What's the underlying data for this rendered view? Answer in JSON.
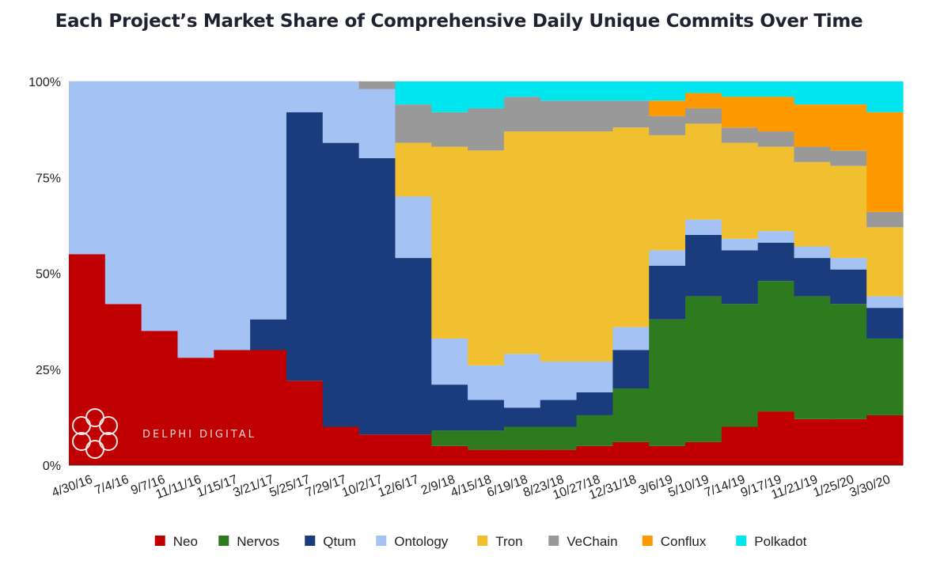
{
  "title": "Each Project’s Market Share of Comprehensive Daily Unique Commits Over Time",
  "watermark": "DELPHI DIGITAL",
  "chart_data": {
    "type": "area",
    "stacked": true,
    "normalized": true,
    "title": "Each Project’s Market Share of Comprehensive Daily Unique Commits Over Time",
    "xlabel": "",
    "ylabel": "",
    "ylim": [
      0,
      100
    ],
    "y_ticks": [
      "0%",
      "25%",
      "50%",
      "75%",
      "100%"
    ],
    "x_ticks": [
      "4/30/16",
      "7/4/16",
      "9/7/16",
      "11/11/16",
      "1/15/17",
      "3/21/17",
      "5/25/17",
      "7/29/17",
      "10/2/17",
      "12/6/17",
      "2/9/18",
      "4/15/18",
      "6/19/18",
      "8/23/18",
      "10/27/18",
      "12/31/18",
      "3/6/19",
      "5/10/19",
      "7/14/19",
      "9/17/19",
      "11/21/19",
      "1/25/20",
      "3/30/20"
    ],
    "legend_position": "bottom",
    "series": [
      {
        "name": "Neo",
        "color": "#c00000",
        "values": [
          55,
          42,
          35,
          28,
          30,
          30,
          22,
          10,
          8,
          8,
          5,
          4,
          4,
          4,
          5,
          6,
          5,
          6,
          10,
          14,
          12,
          12,
          13
        ]
      },
      {
        "name": "Nervos",
        "color": "#2e7a1e",
        "values": [
          0,
          0,
          0,
          0,
          0,
          0,
          0,
          0,
          0,
          0,
          4,
          5,
          6,
          6,
          8,
          14,
          33,
          38,
          32,
          34,
          32,
          30,
          20
        ]
      },
      {
        "name": "Qtum",
        "color": "#1a3c7d",
        "values": [
          0,
          0,
          0,
          0,
          0,
          8,
          70,
          74,
          72,
          46,
          12,
          8,
          5,
          7,
          6,
          10,
          14,
          16,
          14,
          10,
          10,
          9,
          8
        ]
      },
      {
        "name": "Ontology",
        "color": "#a4c2f4",
        "values": [
          45,
          58,
          65,
          72,
          70,
          62,
          8,
          16,
          18,
          16,
          12,
          9,
          14,
          10,
          8,
          6,
          4,
          4,
          3,
          3,
          3,
          3,
          3
        ]
      },
      {
        "name": "Tron",
        "color": "#f0c030",
        "values": [
          0,
          0,
          0,
          0,
          0,
          0,
          0,
          0,
          0,
          14,
          50,
          56,
          58,
          60,
          60,
          52,
          30,
          25,
          25,
          22,
          22,
          24,
          18
        ]
      },
      {
        "name": "VeChain",
        "color": "#999999",
        "values": [
          0,
          0,
          0,
          0,
          0,
          0,
          0,
          0,
          2,
          10,
          9,
          11,
          9,
          8,
          8,
          7,
          5,
          4,
          4,
          4,
          4,
          4,
          4
        ]
      },
      {
        "name": "Conflux",
        "color": "#ff9900",
        "values": [
          0,
          0,
          0,
          0,
          0,
          0,
          0,
          0,
          0,
          0,
          0,
          0,
          0,
          0,
          0,
          0,
          4,
          4,
          8,
          9,
          11,
          12,
          26
        ]
      },
      {
        "name": "Polkadot",
        "color": "#00e5ee",
        "values": [
          0,
          0,
          0,
          0,
          0,
          0,
          0,
          0,
          0,
          6,
          8,
          7,
          4,
          5,
          5,
          5,
          5,
          3,
          4,
          4,
          6,
          6,
          8
        ]
      }
    ]
  }
}
